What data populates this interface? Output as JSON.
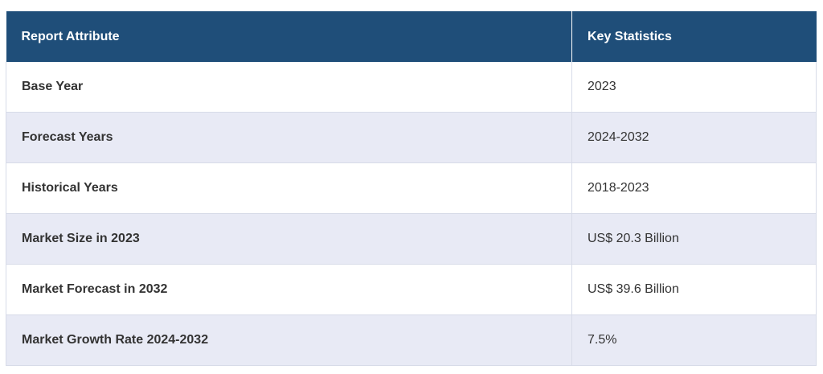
{
  "table": {
    "headers": [
      "Report Attribute",
      "Key Statistics"
    ],
    "rows": [
      {
        "attribute": "Base Year",
        "value": "2023"
      },
      {
        "attribute": "Forecast Years",
        "value": "2024-2032"
      },
      {
        "attribute": "Historical Years",
        "value": "2018-2023"
      },
      {
        "attribute": "Market Size in 2023",
        "value": "US$ 20.3 Billion"
      },
      {
        "attribute": "Market Forecast in 2032",
        "value": "US$ 39.6 Billion"
      },
      {
        "attribute": "Market Growth Rate 2024-2032",
        "value": "7.5%"
      }
    ]
  }
}
